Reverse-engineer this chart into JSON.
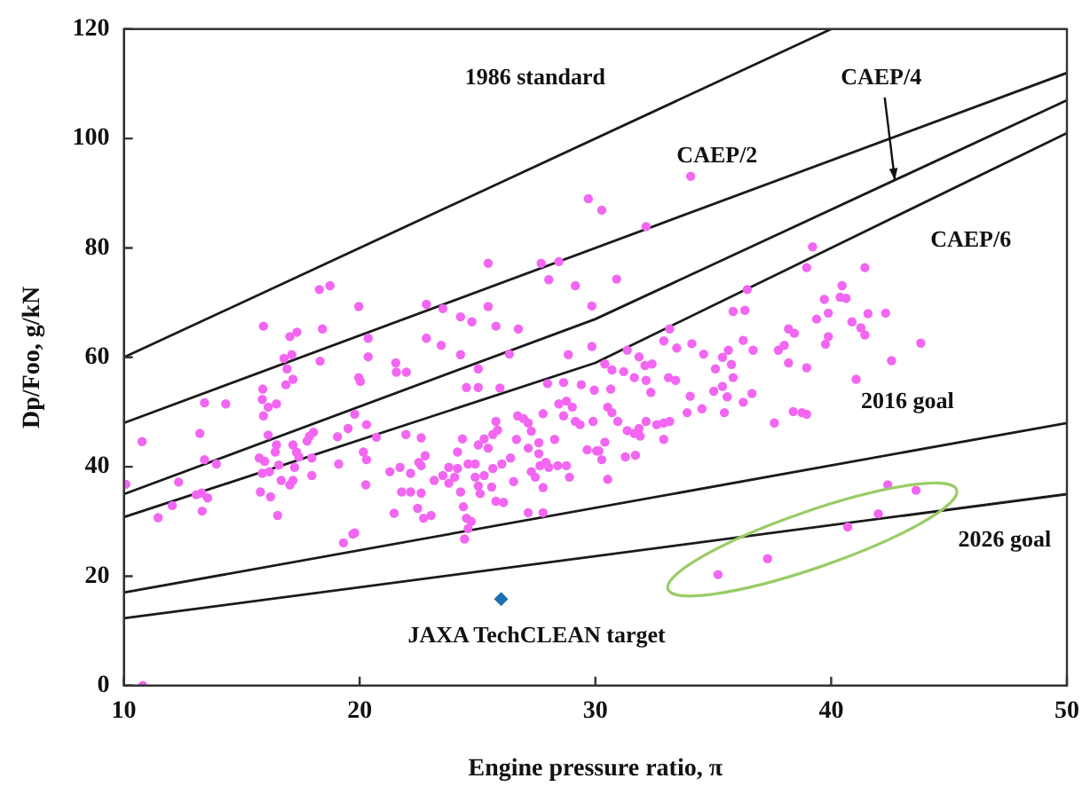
{
  "chart_data": {
    "type": "scatter",
    "xlabel": "Engine pressure ratio, π",
    "ylabel": "Dp/Foo, g/kN",
    "xlim": [
      10,
      50
    ],
    "ylim": [
      0,
      120
    ],
    "xticks": [
      10,
      20,
      30,
      40,
      50
    ],
    "yticks": [
      0,
      20,
      40,
      60,
      80,
      100,
      120
    ],
    "grid": false,
    "legend": false,
    "series": [
      {
        "color": "#f266f2",
        "marker": "circle",
        "x": [
          18.29,
          18.74,
          15.92,
          18.42,
          17.04,
          17.34,
          16.79,
          17.12,
          16.92,
          18.32,
          17.17,
          16.87,
          15.89,
          15.87,
          16.12,
          16.47,
          13.42,
          14.32,
          15.92,
          19.51,
          16.12,
          13.22,
          19.06,
          18.04,
          17.87,
          17.77,
          17.17,
          16.47,
          16.42,
          17.32,
          10.77,
          13.42,
          13.92,
          15.74,
          15.97,
          16.57,
          17.24,
          17.42,
          17.97,
          19.11,
          15.87,
          16.17,
          16.67,
          17.17,
          17.04,
          17.97,
          10.08,
          12.32,
          13.07,
          13.3,
          13.55,
          12.05,
          11.45,
          13.32,
          15.79,
          16.22,
          16.52,
          19.31,
          19.71,
          25.45,
          27.7,
          28.45,
          28.02,
          29.15,
          19.96,
          22.83,
          23.53,
          25.45,
          24.28,
          24.76,
          25.78,
          26.73,
          20.36,
          22.83,
          23.46,
          24.28,
          26.35,
          28.85,
          29.85,
          20.36,
          21.53,
          21.56,
          21.98,
          25.03,
          19.96,
          20.03,
          24.53,
          25.03,
          25.95,
          27.97,
          28.65,
          29.4,
          29.95,
          19.79,
          20.29,
          21.96,
          22.61,
          20.71,
          24.36,
          25.78,
          25.85,
          26.7,
          26.95,
          27.15,
          27.28,
          27.78,
          28.45,
          28.77,
          29.02,
          28.65,
          29.15,
          29.35,
          29.9,
          27.6,
          28.27,
          20.16,
          20.29,
          21.28,
          21.71,
          22.16,
          22.51,
          22.78,
          22.61,
          24.15,
          25.03,
          25.28,
          25.65,
          25.45,
          24.9,
          24.6,
          24.15,
          23.78,
          23.53,
          23.16,
          21.78,
          22.16,
          22.61,
          23.78,
          24.03,
          24.9,
          25.28,
          25.65,
          26.03,
          26.4,
          26.65,
          27.15,
          27.6,
          27.9,
          27.28,
          27.65,
          28.02,
          28.4,
          28.77,
          28.9,
          29.65,
          30.05,
          26.53,
          27.45,
          27.78,
          20.26,
          21.46,
          22.46,
          22.71,
          23.03,
          24.28,
          24.4,
          25.03,
          25.11,
          25.6,
          25.78,
          26.1,
          27.15,
          27.78,
          24.53,
          24.73,
          24.6,
          24.45,
          19.79,
          34.04,
          29.7,
          30.27,
          32.15,
          30.9,
          29.85,
          36.44,
          35.84,
          36.34,
          33.15,
          38.19,
          38.44,
          31.35,
          31.85,
          32.9,
          33.45,
          34.09,
          34.59,
          35.39,
          35.64,
          36.27,
          36.69,
          35.77,
          35.09,
          35.84,
          35.39,
          35.02,
          35.59,
          36.64,
          36.27,
          35.47,
          34.52,
          33.89,
          34.02,
          33.1,
          33.4,
          32.4,
          32.1,
          32.15,
          32.35,
          31.65,
          31.2,
          30.7,
          30.4,
          30.65,
          30.52,
          30.7,
          30.95,
          31.35,
          31.65,
          31.85,
          32.15,
          32.6,
          32.9,
          33.15,
          31.9,
          32.9,
          31.27,
          31.7,
          30.4,
          30.15,
          30.27,
          30.52,
          37.59,
          38.39,
          38.76,
          37.76,
          38.01,
          38.19,
          39.21,
          38.96,
          41.43,
          40.46,
          39.71,
          40.38,
          40.63,
          39.38,
          39.88,
          41.56,
          42.31,
          40.88,
          41.26,
          41.43,
          39.88,
          39.76,
          43.8,
          42.56,
          38.96,
          41.06,
          38.96,
          35.2,
          37.3,
          40.7,
          42.0,
          42.4,
          43.6,
          10.8
        ],
        "values": [
          72.4,
          73.1,
          65.7,
          65.2,
          63.8,
          64.6,
          59.8,
          60.5,
          57.9,
          59.3,
          56.0,
          55.0,
          54.2,
          52.3,
          50.9,
          51.5,
          51.7,
          51.5,
          49.3,
          47.0,
          45.8,
          46.1,
          45.5,
          46.3,
          45.6,
          44.7,
          44.0,
          44.0,
          42.7,
          42.7,
          44.6,
          41.3,
          40.5,
          41.6,
          41.0,
          40.3,
          39.9,
          41.8,
          41.6,
          40.5,
          38.8,
          39.1,
          37.5,
          37.5,
          36.7,
          38.4,
          36.8,
          37.2,
          34.9,
          35.2,
          34.3,
          32.9,
          30.7,
          31.9,
          35.4,
          34.5,
          31.1,
          26.1,
          27.7,
          77.2,
          77.2,
          77.5,
          74.2,
          73.1,
          69.3,
          69.7,
          68.9,
          69.3,
          67.4,
          66.5,
          65.7,
          65.2,
          63.5,
          63.5,
          62.2,
          60.5,
          60.6,
          60.5,
          62.0,
          60.1,
          59.0,
          57.3,
          57.3,
          57.9,
          56.3,
          55.6,
          54.5,
          54.5,
          54.4,
          55.2,
          55.4,
          55.0,
          54.0,
          49.6,
          47.7,
          45.9,
          45.3,
          45.4,
          45.1,
          48.3,
          46.7,
          49.3,
          48.8,
          48.0,
          46.5,
          49.7,
          51.5,
          52.0,
          50.9,
          49.3,
          48.3,
          47.7,
          48.3,
          44.4,
          45.0,
          42.7,
          41.3,
          39.1,
          39.9,
          38.8,
          40.8,
          42.0,
          40.2,
          42.7,
          44.0,
          45.1,
          45.9,
          43.4,
          40.5,
          40.5,
          39.7,
          39.9,
          38.4,
          37.5,
          35.4,
          35.4,
          35.2,
          37.0,
          38.1,
          38.1,
          38.4,
          39.7,
          40.5,
          41.6,
          45.0,
          43.4,
          42.4,
          40.8,
          39.1,
          40.2,
          39.9,
          40.2,
          40.2,
          38.1,
          43.1,
          42.9,
          37.3,
          38.1,
          36.2,
          36.7,
          31.5,
          32.4,
          30.6,
          31.1,
          35.4,
          32.7,
          36.5,
          35.1,
          36.3,
          33.7,
          33.5,
          31.6,
          31.6,
          30.6,
          30.0,
          28.7,
          26.8,
          27.9,
          93.1,
          89.0,
          86.9,
          83.9,
          74.3,
          69.4,
          72.4,
          68.4,
          68.6,
          65.2,
          65.2,
          64.4,
          61.3,
          60.1,
          63.0,
          61.7,
          62.5,
          60.6,
          60.0,
          61.3,
          63.1,
          61.3,
          58.7,
          57.9,
          56.3,
          54.7,
          53.8,
          52.8,
          53.4,
          51.8,
          49.9,
          50.6,
          49.9,
          52.9,
          56.3,
          55.8,
          58.8,
          58.5,
          55.8,
          53.6,
          56.3,
          57.4,
          57.7,
          58.8,
          54.2,
          50.9,
          49.9,
          48.3,
          46.6,
          46.1,
          47.0,
          48.3,
          47.7,
          48.0,
          48.3,
          45.6,
          45.0,
          41.8,
          42.1,
          44.5,
          42.9,
          41.3,
          37.7,
          48.0,
          50.1,
          49.9,
          61.3,
          62.2,
          59.0,
          80.2,
          76.4,
          76.4,
          73.1,
          70.6,
          71.0,
          70.8,
          67.0,
          68.1,
          68.0,
          68.1,
          66.5,
          65.4,
          64.1,
          63.8,
          62.4,
          62.6,
          59.4,
          58.1,
          56.0,
          49.6,
          20.3,
          23.2,
          29.0,
          31.4,
          36.7,
          35.7,
          0
        ]
      },
      {
        "color": "#1f6fb4",
        "marker": "diamond",
        "x": [
          26.0
        ],
        "values": [
          15.8
        ]
      },
      {
        "type": "line",
        "color": "#1a1a1a",
        "marker": "none",
        "line_style": "solid",
        "x": [
          10,
          40
        ],
        "values": [
          60,
          120
        ]
      },
      {
        "type": "line",
        "color": "#1a1a1a",
        "marker": "none",
        "line_style": "solid",
        "x": [
          10,
          50
        ],
        "values": [
          48,
          112
        ]
      },
      {
        "type": "line",
        "color": "#1a1a1a",
        "marker": "none",
        "line_style": "solid",
        "x": [
          10,
          30,
          50
        ],
        "values": [
          35,
          67,
          107
        ]
      },
      {
        "type": "line",
        "color": "#1a1a1a",
        "marker": "none",
        "line_style": "solid",
        "x": [
          10,
          30,
          50
        ],
        "values": [
          30.8,
          59,
          101
        ]
      },
      {
        "type": "line",
        "color": "#1a1a1a",
        "marker": "none",
        "line_style": "solid",
        "x": [
          10,
          50
        ],
        "values": [
          17,
          48
        ]
      },
      {
        "type": "line",
        "color": "#1a1a1a",
        "marker": "none",
        "line_style": "solid",
        "x": [
          10,
          50
        ],
        "values": [
          12.3,
          35
        ]
      }
    ],
    "annotations": [
      "1986 standard",
      "CAEP/2",
      {
        "text": "CAEP/4",
        "x": 42.7,
        "y": 92.4
      },
      "CAEP/6",
      "2016 goal",
      "2026 goal",
      {
        "text": "JAXA TechCLEAN target",
        "x": 26.0,
        "y": 15.8
      }
    ]
  }
}
